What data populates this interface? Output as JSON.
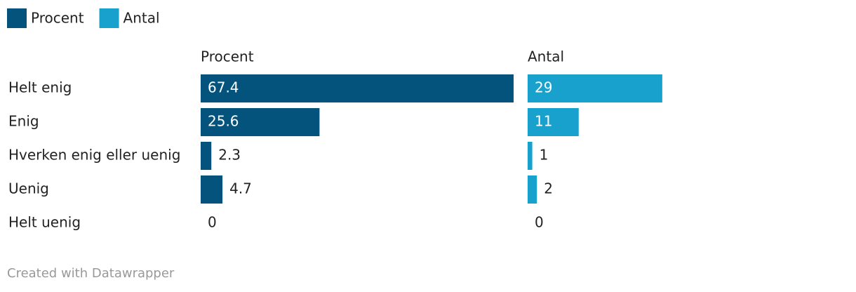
{
  "chart_data": {
    "type": "split-bar",
    "categories": [
      "Helt enig",
      "Enig",
      "Hverken enig eller uenig",
      "Uenig",
      "Helt uenig"
    ],
    "series": [
      {
        "name": "Procent",
        "color": "#03537d",
        "values": [
          67.4,
          25.6,
          2.3,
          4.7,
          0
        ]
      },
      {
        "name": "Antal",
        "color": "#18a1cd",
        "values": [
          29,
          11,
          1,
          2,
          0
        ]
      }
    ],
    "xlim": [
      0,
      67.4
    ],
    "credit": "Created with Datawrapper"
  }
}
